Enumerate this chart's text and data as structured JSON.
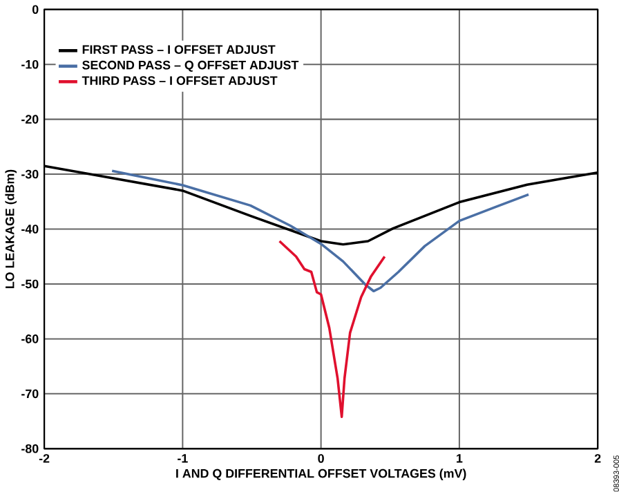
{
  "chart_data": {
    "type": "line",
    "xlabel": "I AND Q DIFFERENTIAL OFFSET VOLTAGES (mV)",
    "ylabel": "LO LEAKAGE (dBm)",
    "xlim": [
      -2,
      2
    ],
    "ylim": [
      -80,
      0
    ],
    "xticks": [
      -2,
      -1,
      0,
      1,
      2
    ],
    "yticks": [
      -80,
      -70,
      -60,
      -50,
      -40,
      -30,
      -20,
      -10,
      0
    ],
    "grid": true,
    "legend": "top left",
    "annotations": [
      "08393-005"
    ],
    "series": [
      {
        "name": "FIRST PASS – I OFFSET ADJUST",
        "color": "#000000",
        "x": [
          -2,
          -1,
          -0.51,
          0,
          0.16,
          0.34,
          0.52,
          1.0,
          1.49,
          2
        ],
        "values": [
          -28.5,
          -33,
          -37.6,
          -42.2,
          -42.8,
          -42.2,
          -39.9,
          -35.1,
          -31.9,
          -29.7
        ]
      },
      {
        "name": "SECOND PASS – Q OFFSET ADJUST",
        "color": "#4a6fa5",
        "x": [
          -1.51,
          -1,
          -0.51,
          -0.22,
          0,
          0.16,
          0.32,
          0.38,
          0.43,
          0.56,
          0.75,
          1.0,
          1.27,
          1.5
        ],
        "values": [
          -29.4,
          -32,
          -35.7,
          -39.4,
          -42.7,
          -45.9,
          -50.1,
          -51.3,
          -50.7,
          -47.8,
          -43.1,
          -38.5,
          -35.9,
          -33.7
        ]
      },
      {
        "name": "THIRD  PASS – I OFFSET ADJUST",
        "color": "#e0102e",
        "x": [
          -0.3,
          -0.18,
          -0.12,
          -0.07,
          -0.03,
          0,
          0.06,
          0.12,
          0.15,
          0.17,
          0.21,
          0.29,
          0.36,
          0.46
        ],
        "values": [
          -42.2,
          -45,
          -47.3,
          -47.8,
          -51.5,
          -51.9,
          -58,
          -67.2,
          -74.2,
          -67.2,
          -58.9,
          -52.4,
          -48.7,
          -45
        ]
      }
    ]
  }
}
